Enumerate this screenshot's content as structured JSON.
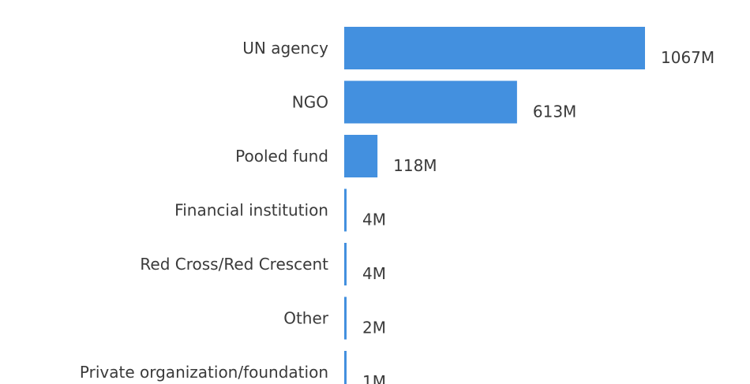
{
  "chart_data": {
    "type": "bar",
    "orientation": "horizontal",
    "categories": [
      "UN agency",
      "NGO",
      "Pooled fund",
      "Financial institution",
      "Red Cross/Red Crescent",
      "Other",
      "Private organization/foundation"
    ],
    "values": [
      1067,
      613,
      118,
      4,
      4,
      2,
      1
    ],
    "value_labels": [
      "1067M",
      "613M",
      "118M",
      "4M",
      "4M",
      "2M",
      "1M"
    ],
    "bar_color": "#4390df",
    "title": "",
    "xlabel": "",
    "ylabel": "",
    "grid": false,
    "legend": "none"
  }
}
